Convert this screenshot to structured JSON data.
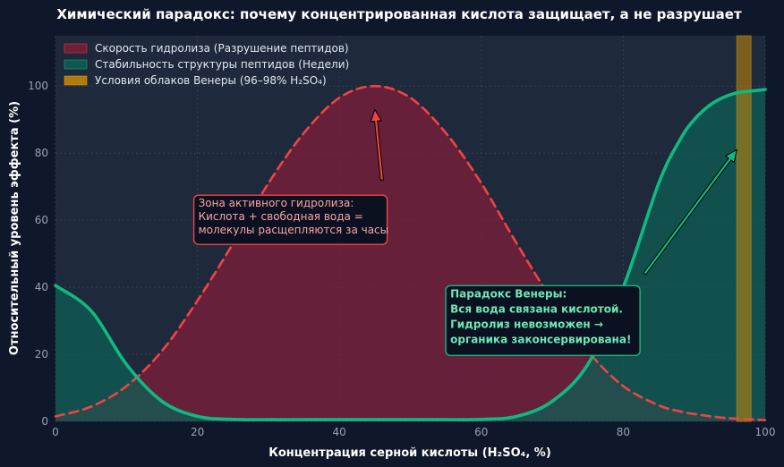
{
  "chart_data": {
    "type": "area",
    "title": "Химический парадокс: почему концентрированная кислота защищает, а не разрушает",
    "xlabel": "Концентрация серной кислоты (H₂SO₄, %)",
    "ylabel": "Относительный уровень эффекта (%)",
    "xlim": [
      0,
      100
    ],
    "ylim": [
      0,
      115
    ],
    "x_ticks": [
      0,
      20,
      40,
      60,
      80,
      100
    ],
    "y_ticks": [
      0,
      20,
      40,
      60,
      80,
      100
    ],
    "grid": true,
    "legend_position": "top-left",
    "x": [
      0,
      5,
      10,
      15,
      20,
      25,
      30,
      35,
      40,
      45,
      50,
      55,
      60,
      65,
      70,
      75,
      80,
      85,
      88,
      90,
      92,
      94,
      96,
      98,
      100
    ],
    "series": [
      {
        "name": "Скорость гидролиза (Разрушение пептидов)",
        "style": "dashed",
        "color": "#ef4444",
        "fill": "#7f1d3a",
        "values": [
          1.5,
          4.4,
          10.5,
          21,
          36,
          53,
          71,
          86,
          96.5,
          100,
          96.5,
          86,
          71,
          53,
          36,
          21,
          10.5,
          4.8,
          3.0,
          2.2,
          1.6,
          1.1,
          0.8,
          0.6,
          0.4
        ]
      },
      {
        "name": "Стабильность структуры пептидов (Недели)",
        "style": "solid",
        "color": "#10b981",
        "fill": "#0f5e55",
        "values": [
          40.5,
          33,
          17,
          6,
          1.5,
          0.6,
          0.5,
          0.5,
          0.5,
          0.5,
          0.5,
          0.5,
          0.6,
          1.5,
          6,
          17,
          40,
          71,
          84,
          90,
          94,
          96.5,
          98,
          98.5,
          99
        ]
      }
    ],
    "bands": [
      {
        "name": "Условия облаков Венеры (96–98% H₂SO₄)",
        "x_range": [
          96,
          98
        ],
        "color": "#ca8a04"
      }
    ],
    "annotations": [
      {
        "id": "hydrolysis",
        "lines": [
          "Зона активного гидролиза:",
          "Кислота + свободная вода =",
          "молекулы расщепляются за часы"
        ],
        "text_at": [
          20,
          64
        ],
        "arrow_from": [
          46,
          72
        ],
        "arrow_to": [
          45,
          93
        ]
      },
      {
        "id": "venus",
        "lines": [
          "Парадокс Венеры:",
          "Вся вода связана кислотой.",
          "Гидролиз невозможен →",
          "органика законсервирована!"
        ],
        "text_at": [
          55.5,
          37
        ],
        "arrow_from": [
          83,
          44
        ],
        "arrow_to": [
          96,
          81
        ]
      }
    ]
  },
  "colors": {
    "background": "#0f172a",
    "plot_background": "#1e293b",
    "grid": "#475569"
  }
}
